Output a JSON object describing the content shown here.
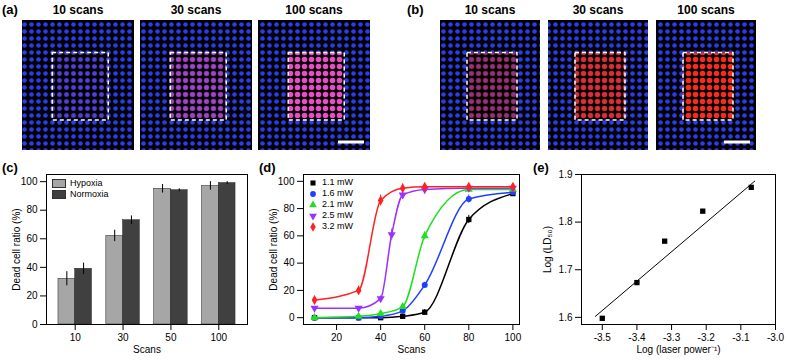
{
  "chart_data": [
    {
      "type": "image",
      "title": "(a)",
      "categories": [
        "10 scans",
        "30 scans",
        "100 scans"
      ]
    },
    {
      "type": "image",
      "title": "(b)",
      "categories": [
        "10 scans",
        "30 scans",
        "100 scans"
      ]
    },
    {
      "type": "bar",
      "title": "(c)",
      "categories": [
        "10",
        "30",
        "50",
        "100"
      ],
      "series": [
        {
          "name": "Hypoxia",
          "color": "#a6a6a6",
          "values": [
            32,
            62,
            95,
            97
          ],
          "errors": [
            5,
            4,
            3,
            3
          ]
        },
        {
          "name": "Normoxia",
          "color": "#404040",
          "values": [
            39,
            73,
            94,
            99
          ],
          "errors": [
            4,
            3,
            1,
            1
          ]
        }
      ],
      "x_label": "Scans",
      "y_label": "Dead cell ratio (%)",
      "ylim": [
        0,
        105
      ],
      "yticks": [
        0,
        20,
        40,
        60,
        80,
        100
      ],
      "legend": "top-left"
    },
    {
      "type": "line",
      "title": "(d)",
      "series": [
        {
          "name": "1.1 mW",
          "color": "#000000",
          "marker": "square",
          "x": [
            10,
            30,
            40,
            50,
            60,
            80,
            100
          ],
          "values": [
            0,
            0,
            0,
            1,
            4,
            72,
            91
          ],
          "errors": [
            0,
            0,
            0,
            0,
            2,
            3,
            1
          ]
        },
        {
          "name": "1.6 mW",
          "color": "#1f3fff",
          "marker": "circle",
          "x": [
            10,
            30,
            40,
            50,
            60,
            80,
            100
          ],
          "values": [
            0,
            0,
            1,
            5,
            24,
            87,
            92
          ],
          "errors": [
            0,
            0,
            0,
            1,
            2,
            3,
            1
          ]
        },
        {
          "name": "2.1 mW",
          "color": "#22dd22",
          "marker": "triangle",
          "x": [
            10,
            30,
            40,
            50,
            60,
            80,
            100
          ],
          "values": [
            0,
            1,
            3,
            8,
            60,
            94,
            94
          ],
          "errors": [
            0,
            0,
            1,
            1,
            3,
            1,
            1
          ]
        },
        {
          "name": "2.5 mW",
          "color": "#9b30ff",
          "marker": "triangle-down",
          "x": [
            10,
            30,
            40,
            45,
            50,
            60,
            80,
            100
          ],
          "values": [
            7,
            7,
            14,
            61,
            90,
            94,
            95,
            95
          ],
          "errors": [
            1,
            1,
            2,
            4,
            3,
            1,
            1,
            1
          ]
        },
        {
          "name": "3.2 mW",
          "color": "#ff2020",
          "marker": "diamond",
          "x": [
            10,
            30,
            40,
            50,
            60,
            80,
            100
          ],
          "values": [
            13,
            20,
            86,
            95,
            96,
            96,
            96
          ],
          "errors": [
            2,
            3,
            4,
            3,
            1,
            1,
            1
          ]
        }
      ],
      "x_label": "Scans",
      "y_label": "Dead cell ratio (%)",
      "xlim": [
        5,
        103
      ],
      "xticks": [
        20,
        40,
        60,
        80,
        100
      ],
      "ylim": [
        -5,
        105
      ],
      "yticks": [
        0,
        20,
        40,
        60,
        80,
        100
      ],
      "legend": "top-left"
    },
    {
      "type": "scatter",
      "title": "(e)",
      "series": [
        {
          "type": "scatter",
          "marker": "square",
          "color": "#000000",
          "x": [
            -3.5,
            -3.4,
            -3.32,
            -3.21,
            -3.07
          ],
          "values": [
            1.598,
            1.673,
            1.76,
            1.823,
            1.873
          ]
        },
        {
          "type": "line",
          "color": "#000000",
          "x": [
            -3.52,
            -3.06
          ],
          "values": [
            1.602,
            1.886
          ]
        }
      ],
      "x_label": "Log (laser power⁻¹)",
      "y_label": "Log (LD₅₀)",
      "xlim": [
        -3.56,
        -3.0
      ],
      "xticks": [
        -3.5,
        -3.4,
        -3.3,
        -3.2,
        -3.1,
        {
          "value": -3,
          "label": "-3.0"
        }
      ],
      "ylim": [
        1.585,
        1.9
      ],
      "yticks": [
        1.6,
        1.7,
        1.8,
        1.9
      ]
    }
  ]
}
